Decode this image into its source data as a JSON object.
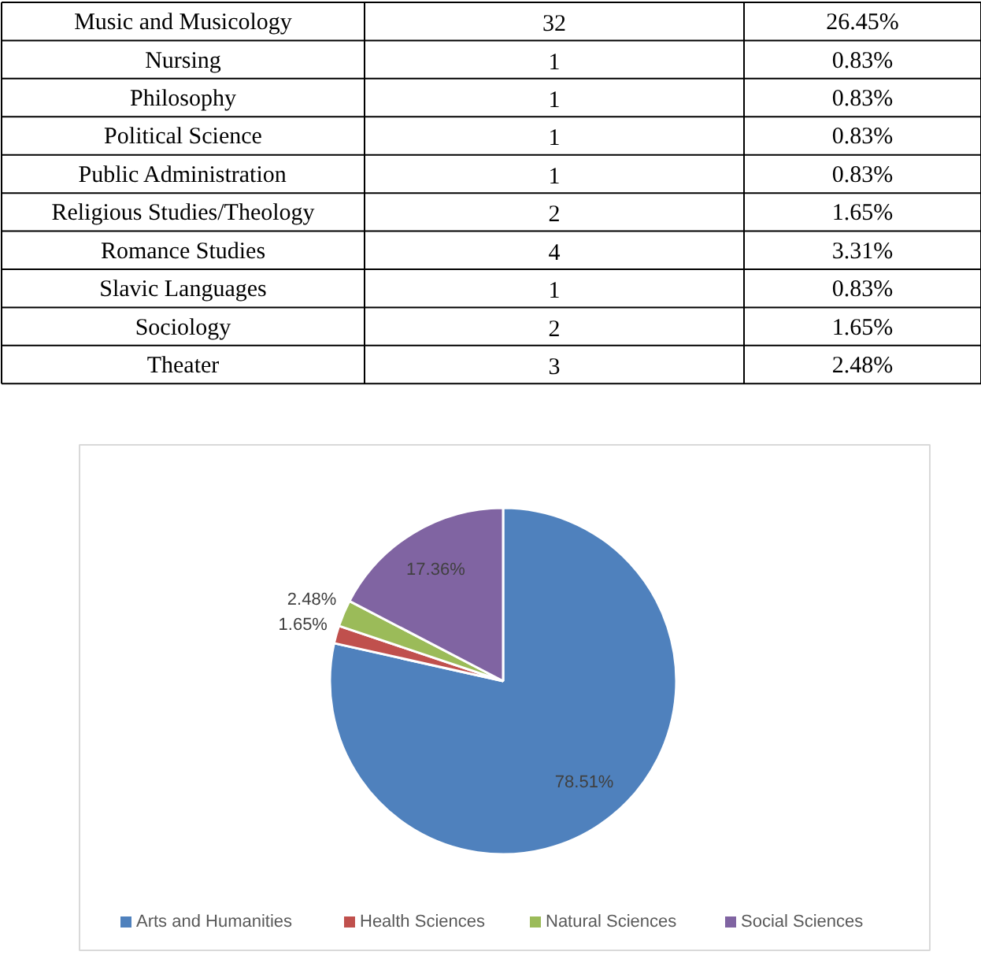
{
  "chart_data": [
    {
      "type": "other",
      "categories": [
        "Music and Musicology",
        "Nursing",
        "Philosophy",
        "Political Science",
        "Public Administration",
        "Religious Studies/Theology",
        "Romance Studies",
        "Slavic Languages",
        "Sociology",
        "Theater"
      ],
      "series": [
        {
          "values": [
            32,
            1,
            1,
            1,
            1,
            2,
            4,
            1,
            2,
            3
          ]
        },
        {
          "values": [
            26.45,
            0.83,
            0.83,
            0.83,
            0.83,
            1.65,
            3.31,
            0.83,
            1.65,
            2.48
          ],
          "value_labels": [
            "26.45%",
            "0.83%",
            "0.83%",
            "0.83%",
            "0.83%",
            "1.65%",
            "3.31%",
            "0.83%",
            "1.65%",
            "2.48%"
          ]
        }
      ],
      "data_labels": true
    },
    {
      "type": "pie",
      "categories": [
        "Arts and Humanities",
        "Health Sciences",
        "Natural Sciences",
        "Social Sciences"
      ],
      "values": [
        78.51,
        1.65,
        2.48,
        17.36
      ],
      "colors": [
        "#4f81bd",
        "#c0504d",
        "#9bbb59",
        "#8064a2"
      ],
      "value_labels": [
        "78.51%",
        "1.65%",
        "2.48%",
        "17.36%"
      ],
      "legend": "bottom"
    }
  ]
}
